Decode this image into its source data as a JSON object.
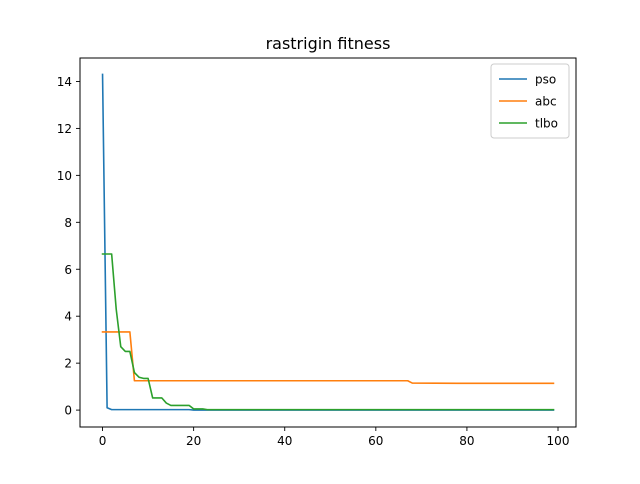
{
  "chart_data": {
    "type": "line",
    "title": "rastrigin fitness",
    "xlabel": "",
    "ylabel": "",
    "xlim": [
      -4.95,
      103.95
    ],
    "ylim": [
      -0.72,
      15.0
    ],
    "x_ticks": [
      0,
      20,
      40,
      60,
      80,
      100
    ],
    "y_ticks": [
      0,
      2,
      4,
      6,
      8,
      10,
      12,
      14
    ],
    "grid": false,
    "legend_position": "top-right",
    "series": [
      {
        "name": "pso",
        "color": "#1f77b4",
        "x": [
          0,
          1,
          2,
          3,
          10,
          19,
          20,
          99
        ],
        "y": [
          14.3,
          0.1,
          0.02,
          0.02,
          0.02,
          0.02,
          0.0,
          0.0
        ]
      },
      {
        "name": "abc",
        "color": "#ff7f0e",
        "x": [
          0,
          1,
          2,
          3,
          4,
          5,
          6,
          7,
          8,
          20,
          40,
          67,
          68,
          78,
          99
        ],
        "y": [
          3.33,
          3.33,
          3.33,
          3.33,
          3.33,
          3.33,
          3.33,
          1.25,
          1.25,
          1.25,
          1.25,
          1.25,
          1.15,
          1.14,
          1.14
        ]
      },
      {
        "name": "tlbo",
        "color": "#2ca02c",
        "x": [
          0,
          1,
          2,
          3,
          4,
          5,
          6,
          7,
          8,
          9,
          10,
          11,
          12,
          13,
          14,
          15,
          16,
          17,
          18,
          19,
          20,
          21,
          22,
          23,
          24,
          99
        ],
        "y": [
          6.65,
          6.65,
          6.65,
          4.3,
          2.7,
          2.5,
          2.5,
          1.6,
          1.4,
          1.35,
          1.35,
          0.52,
          0.52,
          0.52,
          0.3,
          0.2,
          0.2,
          0.2,
          0.2,
          0.2,
          0.05,
          0.05,
          0.05,
          0.02,
          0.02,
          0.02
        ]
      }
    ]
  }
}
